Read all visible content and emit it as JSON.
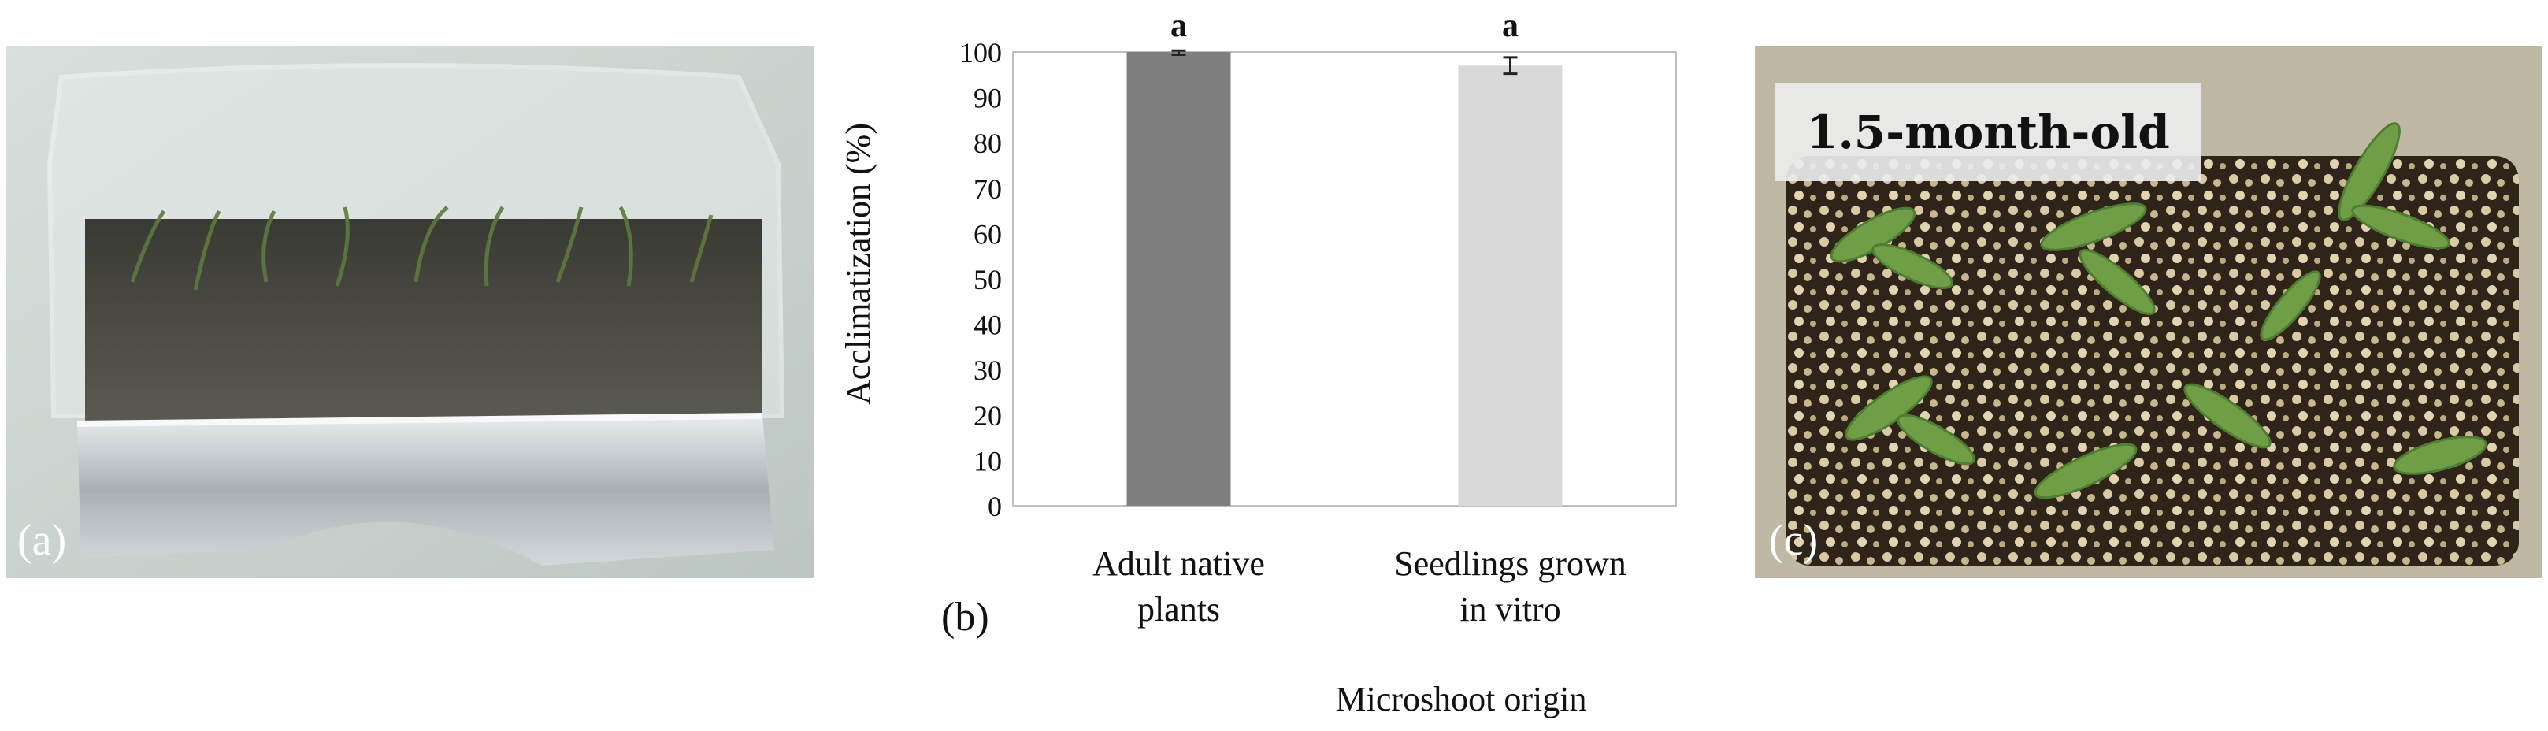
{
  "panels": {
    "a": {
      "label": "(a)"
    },
    "b": {
      "label": "(b)"
    },
    "c": {
      "label": "(c)",
      "overlay": "1.5-month-old"
    }
  },
  "chart_data": {
    "type": "bar",
    "categories": [
      [
        "Adult native",
        "plants"
      ],
      [
        "Seedlings grown",
        "in vitro"
      ]
    ],
    "values": [
      100,
      97
    ],
    "errors": [
      0.6,
      1.8
    ],
    "significance": [
      "a",
      "a"
    ],
    "bar_colors": [
      "#7f7f7f",
      "#d9d9d9"
    ],
    "ylabel": "Acclimatization  (%)",
    "xlabel": "Microshoot  origin",
    "ylim": [
      0,
      100
    ],
    "yticks": [
      0,
      10,
      20,
      30,
      40,
      50,
      60,
      70,
      80,
      90,
      100
    ],
    "grid": false
  }
}
